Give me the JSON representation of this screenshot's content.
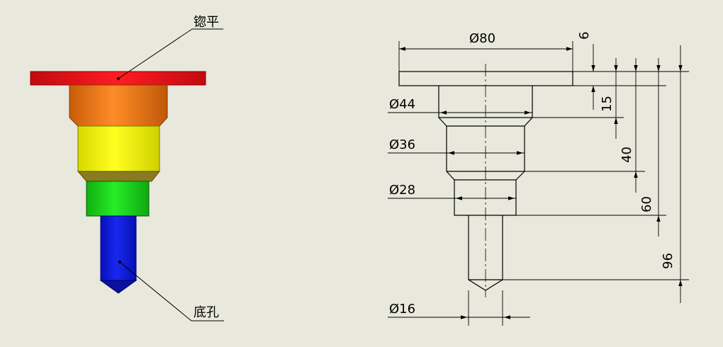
{
  "callouts": {
    "top": "锪平",
    "bottom": "底孔"
  },
  "dimensions": {
    "d80": "Ø80",
    "d44": "Ø44",
    "d36": "Ø36",
    "d28": "Ø28",
    "d16": "Ø16",
    "h6": "6",
    "h15": "15",
    "h40": "40",
    "h60": "60",
    "h96": "96"
  },
  "colors": {
    "background": "#e8e8dc",
    "flange": "#e0141c",
    "step1": "#e87818",
    "step2": "#f0f000",
    "step3": "#18d818",
    "shank": "#1018d8"
  }
}
